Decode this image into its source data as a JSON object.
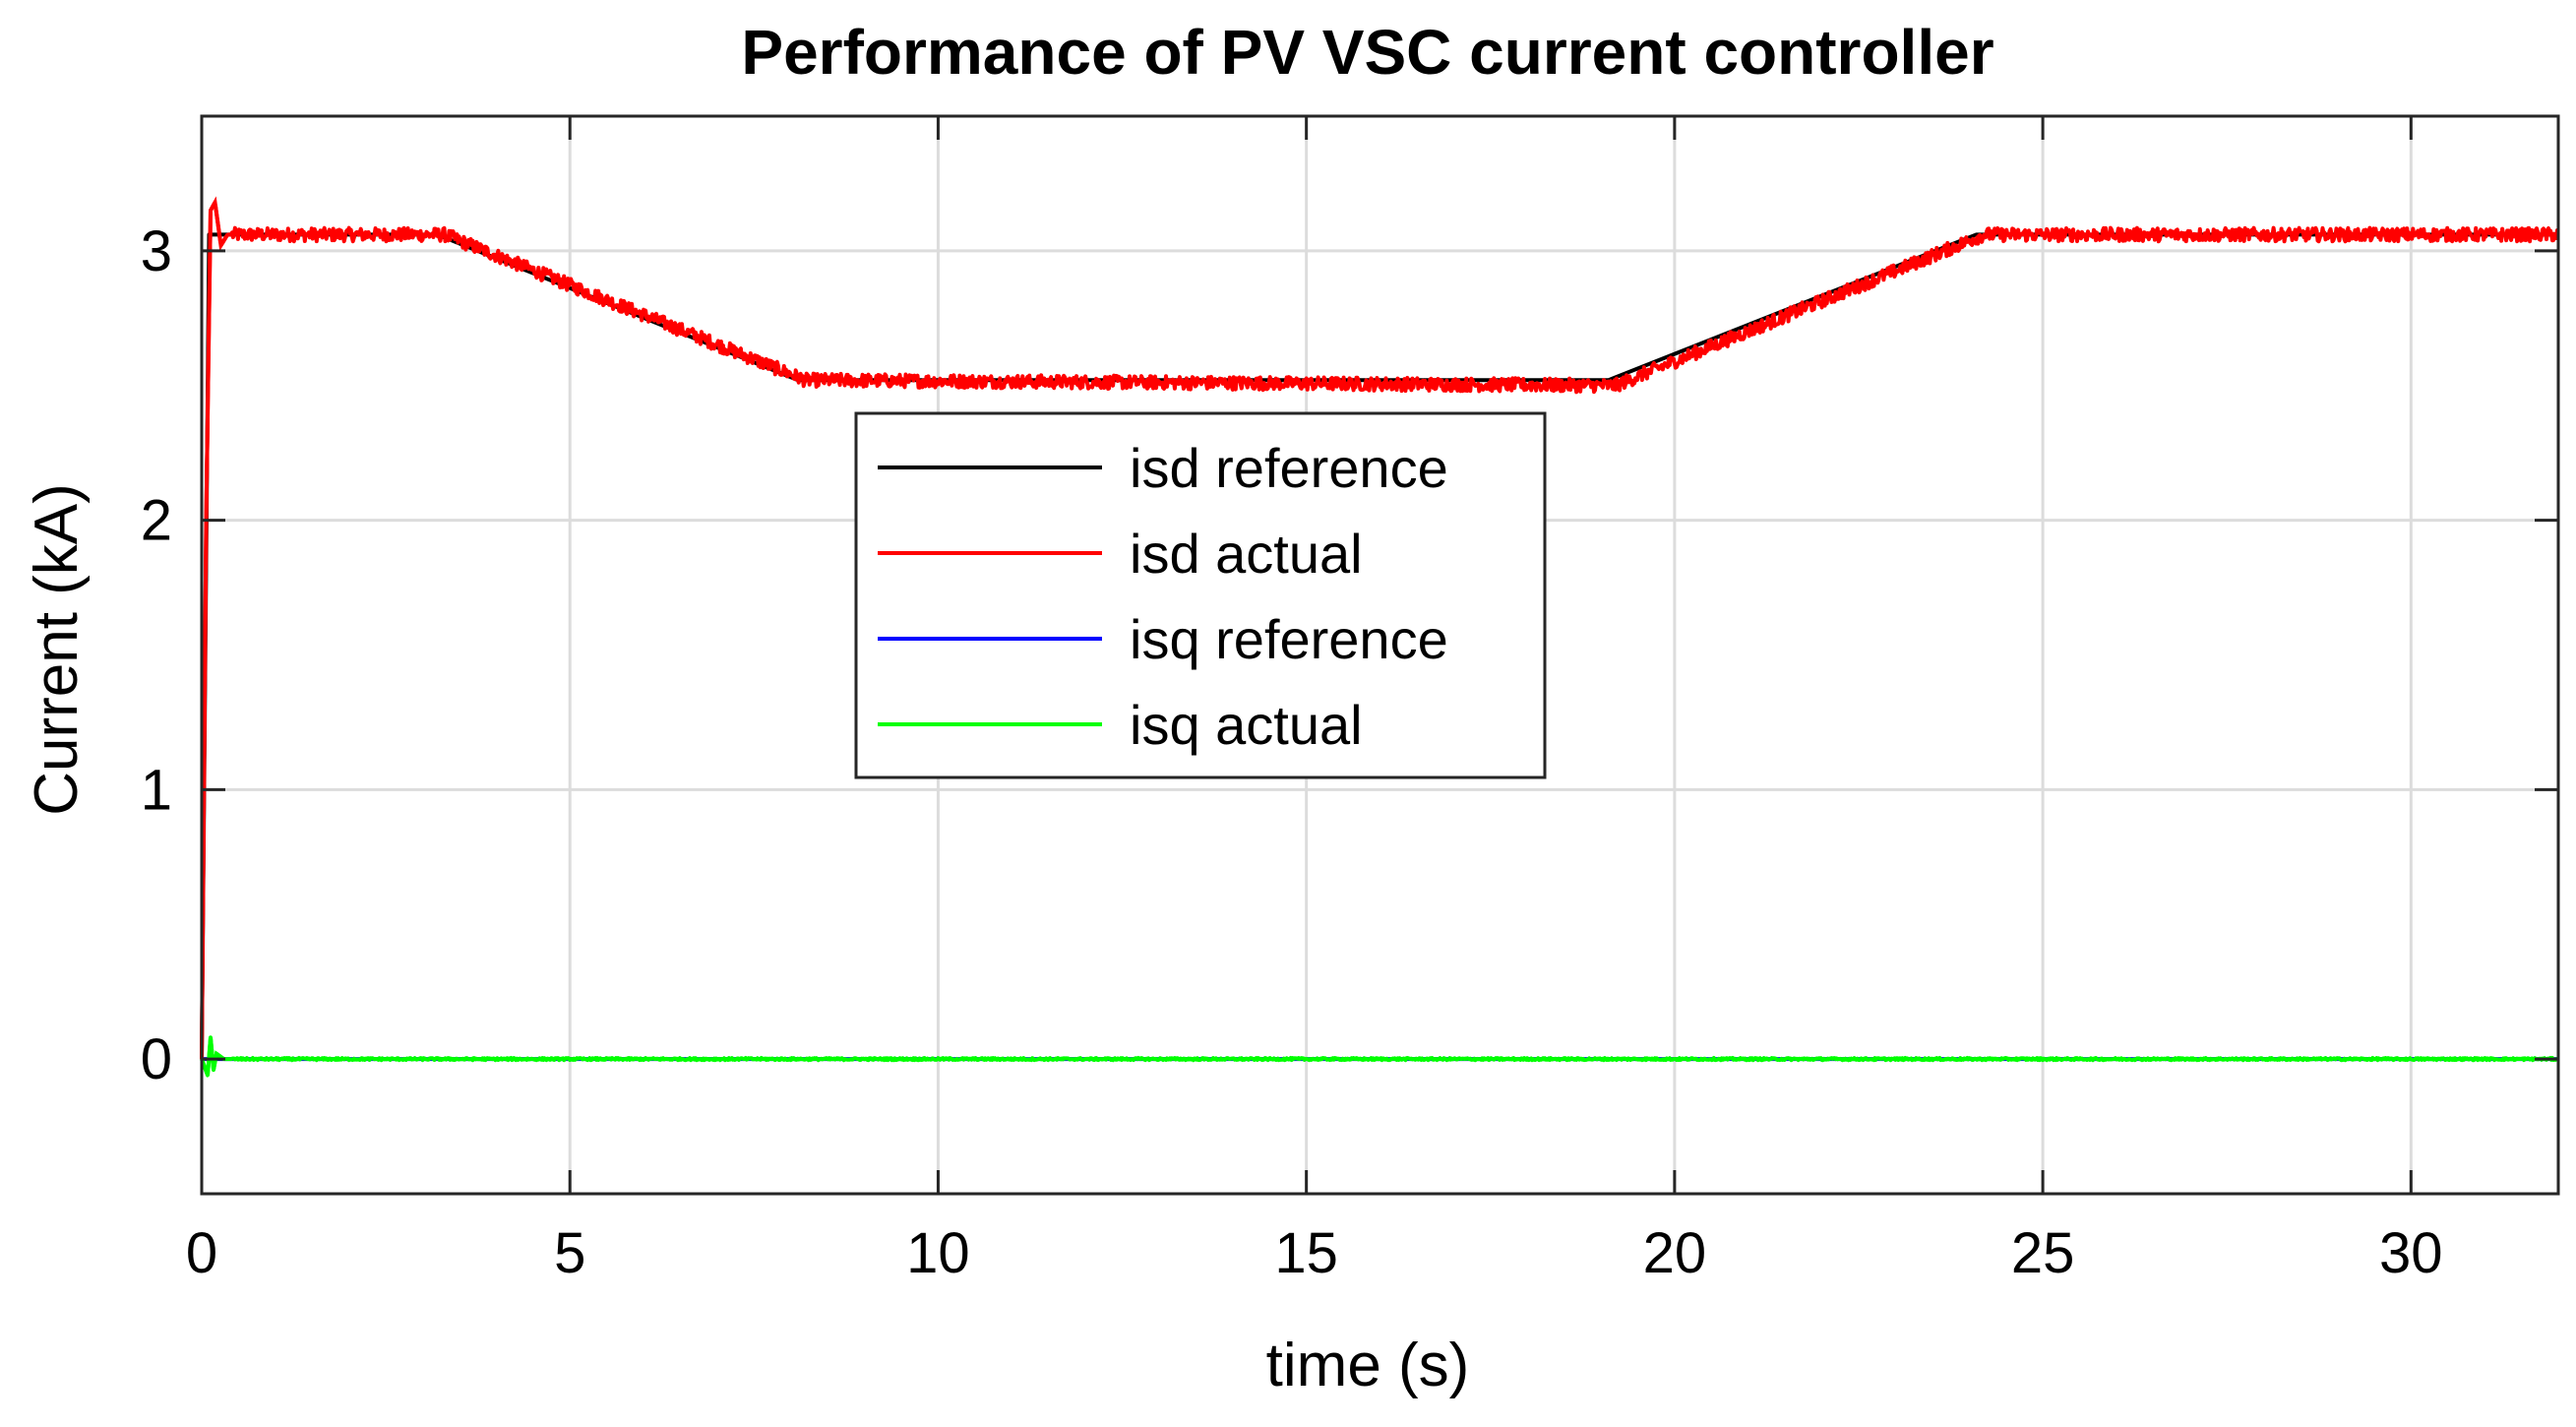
{
  "chart_data": {
    "type": "line",
    "title": "Performance of PV VSC current controller",
    "xlabel": "time (s)",
    "ylabel": "Current (kA)",
    "xlim": [
      0,
      32
    ],
    "ylim": [
      -0.5,
      3.5
    ],
    "xticks": [
      0,
      5,
      10,
      15,
      20,
      25,
      30
    ],
    "yticks": [
      0,
      1,
      2,
      3
    ],
    "grid": true,
    "legend_position": "center-left",
    "series": [
      {
        "name": "isd reference",
        "color": "#000000",
        "x": [
          0,
          0.1,
          3.2,
          8.1,
          19.1,
          24.1,
          32
        ],
        "y": [
          0,
          3.06,
          3.06,
          2.52,
          2.52,
          3.06,
          3.06
        ],
        "noise": 0
      },
      {
        "name": "isd actual",
        "color": "#ff0000",
        "x": [
          0,
          0.06,
          0.12,
          0.18,
          0.26,
          0.35,
          3.3,
          8.2,
          19.2,
          24.2,
          32
        ],
        "y": [
          0,
          2.0,
          3.15,
          3.18,
          3.02,
          3.06,
          3.06,
          2.52,
          2.5,
          3.06,
          3.06
        ],
        "noise": 0.025
      },
      {
        "name": "isq reference",
        "color": "#0000ff",
        "x": [
          0,
          32
        ],
        "y": [
          0,
          0
        ],
        "noise": 0
      },
      {
        "name": "isq actual",
        "color": "#00ff00",
        "x": [
          0,
          0.08,
          0.12,
          0.16,
          0.2,
          0.3,
          32
        ],
        "y": [
          0,
          -0.06,
          0.08,
          -0.04,
          0.02,
          0.0,
          0.0
        ],
        "noise": 0.004
      }
    ]
  }
}
